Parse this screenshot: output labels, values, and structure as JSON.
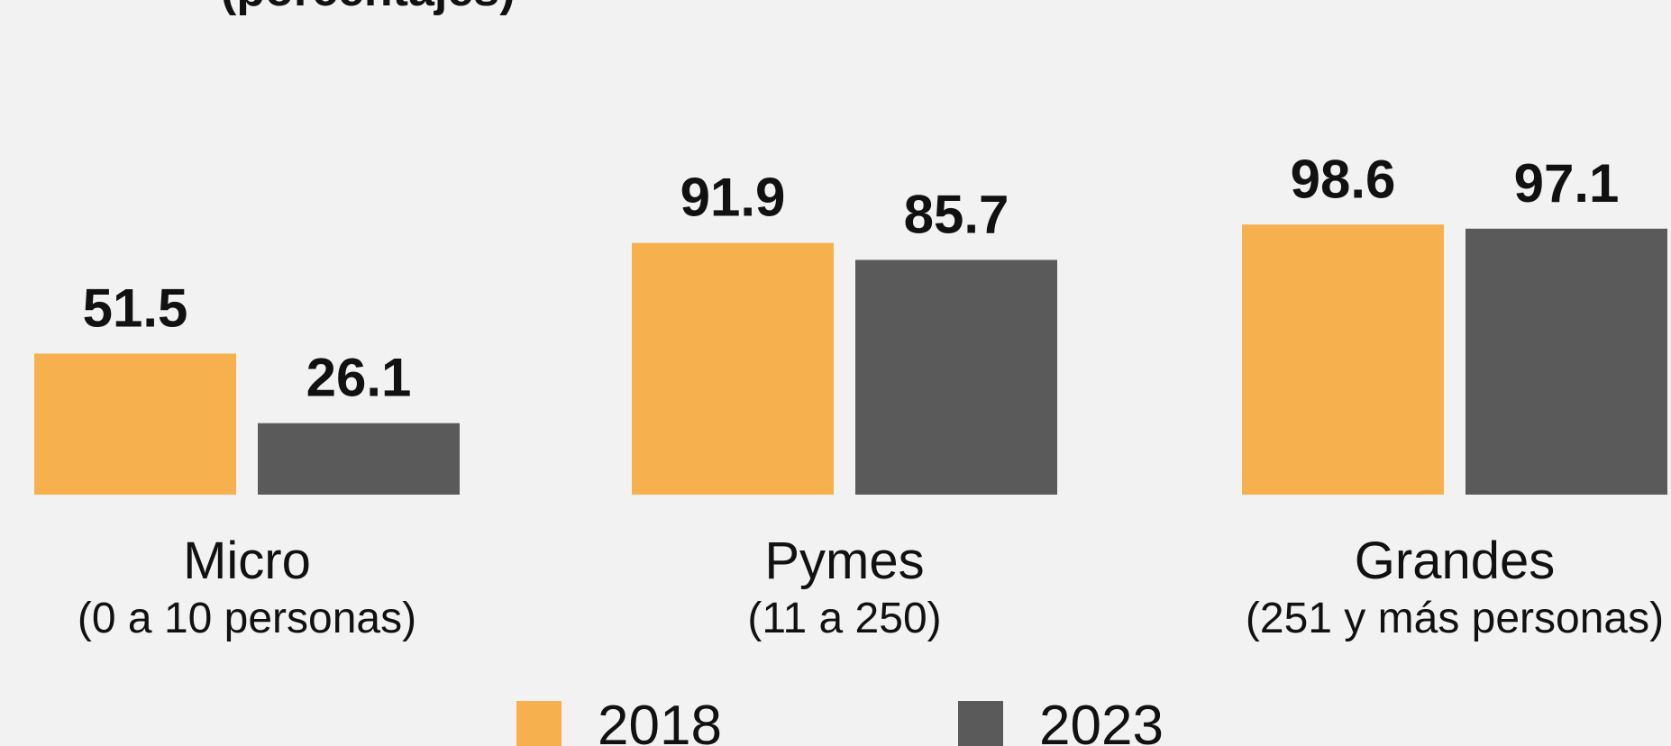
{
  "title_fragment": "(porcentajes)",
  "colors": {
    "background": "#f2f2f2",
    "series_2018": "#f7b04e",
    "series_2023": "#5a5a5a",
    "text": "#111111"
  },
  "chart_data": {
    "type": "bar",
    "title": "",
    "subtitle": "(porcentajes)",
    "xlabel": "",
    "ylabel": "",
    "ylim": [
      0,
      100
    ],
    "grid": false,
    "legend_position": "bottom",
    "categories": [
      "Micro",
      "Pymes",
      "Grandes"
    ],
    "category_sublabels": [
      "(0 a 10 personas)",
      "(11 a 250)",
      "(251 y más personas)"
    ],
    "series": [
      {
        "name": "2018",
        "values": [
          51.5,
          91.9,
          98.6
        ]
      },
      {
        "name": "2023",
        "values": [
          26.1,
          85.7,
          97.1
        ]
      }
    ],
    "value_labels": [
      [
        "51.5",
        "91.9",
        "98.6"
      ],
      [
        "26.1",
        "85.7",
        "97.1"
      ]
    ]
  }
}
